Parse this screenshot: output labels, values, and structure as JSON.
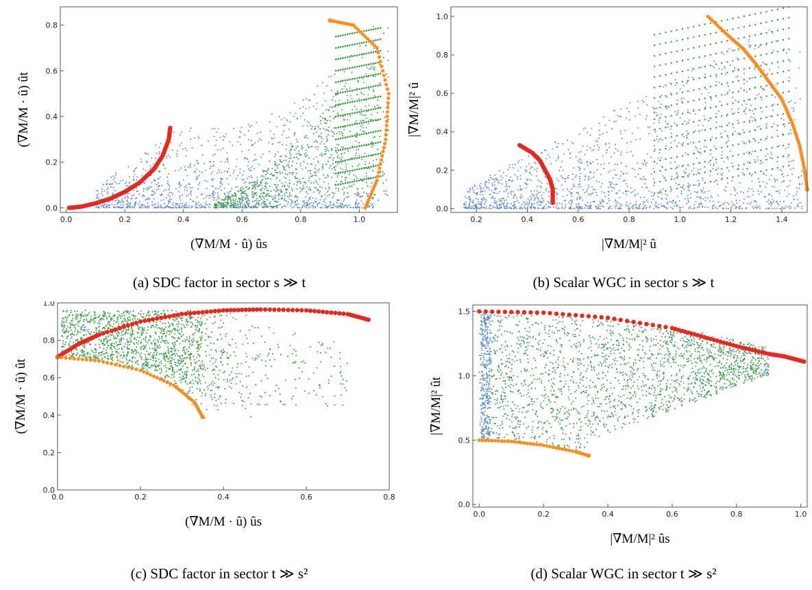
{
  "colors": {
    "blue": "#5b8be0",
    "green": "#2ca02c",
    "red": "#e8281c",
    "orange": "#ff8c1a",
    "frame": "#555555"
  },
  "captions": [
    "(a) SDC factor in sector s ≫ t",
    "(b) Scalar WGC in sector s ≫ t",
    "(c) SDC factor in sector t ≫ s²",
    "(d) Scalar WGC in sector t ≫ s²"
  ],
  "chart_data": [
    {
      "type": "scatter",
      "panel": "a",
      "xlim": [
        -0.02,
        1.13
      ],
      "ylim": [
        -0.02,
        0.88
      ],
      "xticks": [
        "0.0",
        "0.2",
        "0.4",
        "0.6",
        "0.8",
        "1.0"
      ],
      "xtick_values": [
        0,
        0.2,
        0.4,
        0.6,
        0.8,
        1.0
      ],
      "yticks": [
        "0.0",
        "0.2",
        "0.4",
        "0.6",
        "0.8"
      ],
      "ytick_values": [
        0,
        0.2,
        0.4,
        0.6,
        0.8
      ],
      "xlabel": "(∇M/M · û) ûs",
      "ylabel": "(∇M/M · û) ût",
      "series": [
        {
          "color": "red",
          "points": [
            [
              0.01,
              0
            ],
            [
              0.05,
              0.005
            ],
            [
              0.1,
              0.02
            ],
            [
              0.15,
              0.04
            ],
            [
              0.2,
              0.07
            ],
            [
              0.25,
              0.11
            ],
            [
              0.3,
              0.17
            ],
            [
              0.33,
              0.23
            ],
            [
              0.35,
              0.3
            ],
            [
              0.355,
              0.35
            ]
          ]
        },
        {
          "color": "orange",
          "points": [
            [
              1.02,
              0
            ],
            [
              1.06,
              0.12
            ],
            [
              1.09,
              0.3
            ],
            [
              1.1,
              0.5
            ],
            [
              1.06,
              0.7
            ],
            [
              0.98,
              0.8
            ],
            [
              0.9,
              0.82
            ]
          ]
        }
      ]
    },
    {
      "type": "scatter",
      "panel": "b",
      "xlim": [
        0.1,
        1.5
      ],
      "ylim": [
        -0.02,
        1.05
      ],
      "xticks": [
        "0.2",
        "0.4",
        "0.6",
        "0.8",
        "1.0",
        "1.2",
        "1.4"
      ],
      "xtick_values": [
        0.2,
        0.4,
        0.6,
        0.8,
        1.0,
        1.2,
        1.4
      ],
      "yticks": [
        "0.0",
        "0.2",
        "0.4",
        "0.6",
        "0.8",
        "1.0"
      ],
      "ytick_values": [
        0,
        0.2,
        0.4,
        0.6,
        0.8,
        1.0
      ],
      "xlabel": "|∇M/M|² û",
      "ylabel": "|∇M/M|² û",
      "series": [
        {
          "color": "red",
          "points": [
            [
              0.37,
              0.33
            ],
            [
              0.42,
              0.29
            ],
            [
              0.45,
              0.25
            ],
            [
              0.47,
              0.2
            ],
            [
              0.49,
              0.15
            ],
            [
              0.5,
              0.1
            ],
            [
              0.5,
              0.03
            ]
          ]
        },
        {
          "color": "orange",
          "points": [
            [
              1.11,
              1.0
            ],
            [
              1.19,
              0.9
            ],
            [
              1.25,
              0.83
            ],
            [
              1.3,
              0.75
            ],
            [
              1.35,
              0.66
            ],
            [
              1.4,
              0.57
            ],
            [
              1.44,
              0.45
            ],
            [
              1.47,
              0.33
            ],
            [
              1.49,
              0.2
            ],
            [
              1.5,
              0.1
            ]
          ]
        }
      ]
    },
    {
      "type": "scatter",
      "panel": "c",
      "xlim": [
        0,
        0.8
      ],
      "ylim": [
        0,
        1.0
      ],
      "xticks": [
        "0.0",
        "0.2",
        "0.4",
        "0.6",
        "0.8"
      ],
      "xtick_values": [
        0,
        0.2,
        0.4,
        0.6,
        0.8
      ],
      "yticks": [
        "0.0",
        "0.2",
        "0.4",
        "0.6",
        "0.8",
        "1.0"
      ],
      "ytick_values": [
        0,
        0.2,
        0.4,
        0.6,
        0.8,
        1.0
      ],
      "xlabel": "(∇M/M · û) ûs",
      "ylabel": "(∇M/M · û) ût",
      "series": [
        {
          "color": "red",
          "points": [
            [
              0.0,
              0.71
            ],
            [
              0.05,
              0.78
            ],
            [
              0.1,
              0.83
            ],
            [
              0.2,
              0.9
            ],
            [
              0.3,
              0.94
            ],
            [
              0.4,
              0.96
            ],
            [
              0.49,
              0.965
            ],
            [
              0.6,
              0.96
            ],
            [
              0.7,
              0.94
            ],
            [
              0.75,
              0.91
            ]
          ]
        },
        {
          "color": "orange",
          "points": [
            [
              0.0,
              0.71
            ],
            [
              0.1,
              0.69
            ],
            [
              0.2,
              0.64
            ],
            [
              0.28,
              0.56
            ],
            [
              0.33,
              0.47
            ],
            [
              0.35,
              0.39
            ]
          ]
        }
      ]
    },
    {
      "type": "scatter",
      "panel": "d",
      "xlim": [
        -0.02,
        1.02
      ],
      "ylim": [
        -0.02,
        1.55
      ],
      "xticks": [
        "0.0",
        "0.2",
        "0.4",
        "0.6",
        "0.8",
        "1.0"
      ],
      "xtick_values": [
        0,
        0.2,
        0.4,
        0.6,
        0.8,
        1.0
      ],
      "yticks": [
        "0.0",
        "0.5",
        "1.0",
        "1.5"
      ],
      "ytick_values": [
        0,
        0.5,
        1.0,
        1.5
      ],
      "xlabel": "|∇M/M|² ûs",
      "ylabel": "|∇M/M|² ût",
      "series": [
        {
          "color": "red",
          "points": [
            [
              0.0,
              1.5
            ],
            [
              0.2,
              1.49
            ],
            [
              0.4,
              1.45
            ],
            [
              0.6,
              1.37
            ],
            [
              0.7,
              1.3
            ],
            [
              0.8,
              1.23
            ],
            [
              0.9,
              1.17
            ],
            [
              0.95,
              1.15
            ],
            [
              1.01,
              1.11
            ]
          ]
        },
        {
          "color": "orange",
          "points": [
            [
              0.0,
              0.5
            ],
            [
              0.1,
              0.49
            ],
            [
              0.2,
              0.46
            ],
            [
              0.3,
              0.41
            ],
            [
              0.34,
              0.38
            ]
          ]
        }
      ]
    }
  ]
}
